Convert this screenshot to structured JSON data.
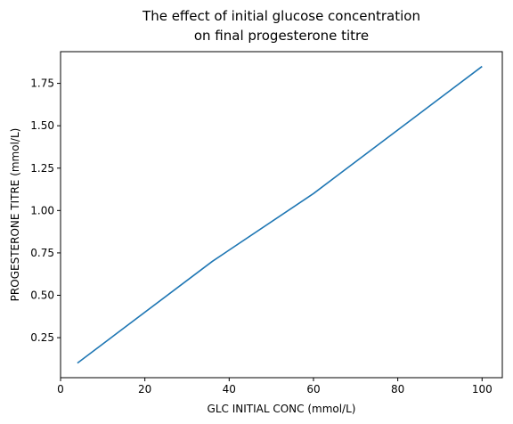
{
  "chart_data": {
    "type": "line",
    "title_lines": [
      "The effect of initial glucose concentration",
      "on final progesterone titre"
    ],
    "xlabel": "GLC INITIAL CONC (mmol/L)",
    "ylabel": "PROGESTERONE TITRE (mmol/L)",
    "xlim": [
      0,
      104.8
    ],
    "ylim": [
      0.014,
      1.937
    ],
    "x_ticks": [
      0,
      20,
      40,
      60,
      80,
      100
    ],
    "x_tick_labels": [
      "0",
      "20",
      "40",
      "60",
      "80",
      "100"
    ],
    "y_ticks": [
      0.25,
      0.5,
      0.75,
      1.0,
      1.25,
      1.5,
      1.75
    ],
    "y_tick_labels": [
      "0.25",
      "0.50",
      "0.75",
      "1.00",
      "1.25",
      "1.50",
      "1.75"
    ],
    "grid": false,
    "legend": "none",
    "series": [
      {
        "color": "#1f77b4",
        "x": [
          4,
          36,
          60,
          100
        ],
        "y": [
          0.1,
          0.7,
          1.1,
          1.85
        ]
      }
    ]
  }
}
